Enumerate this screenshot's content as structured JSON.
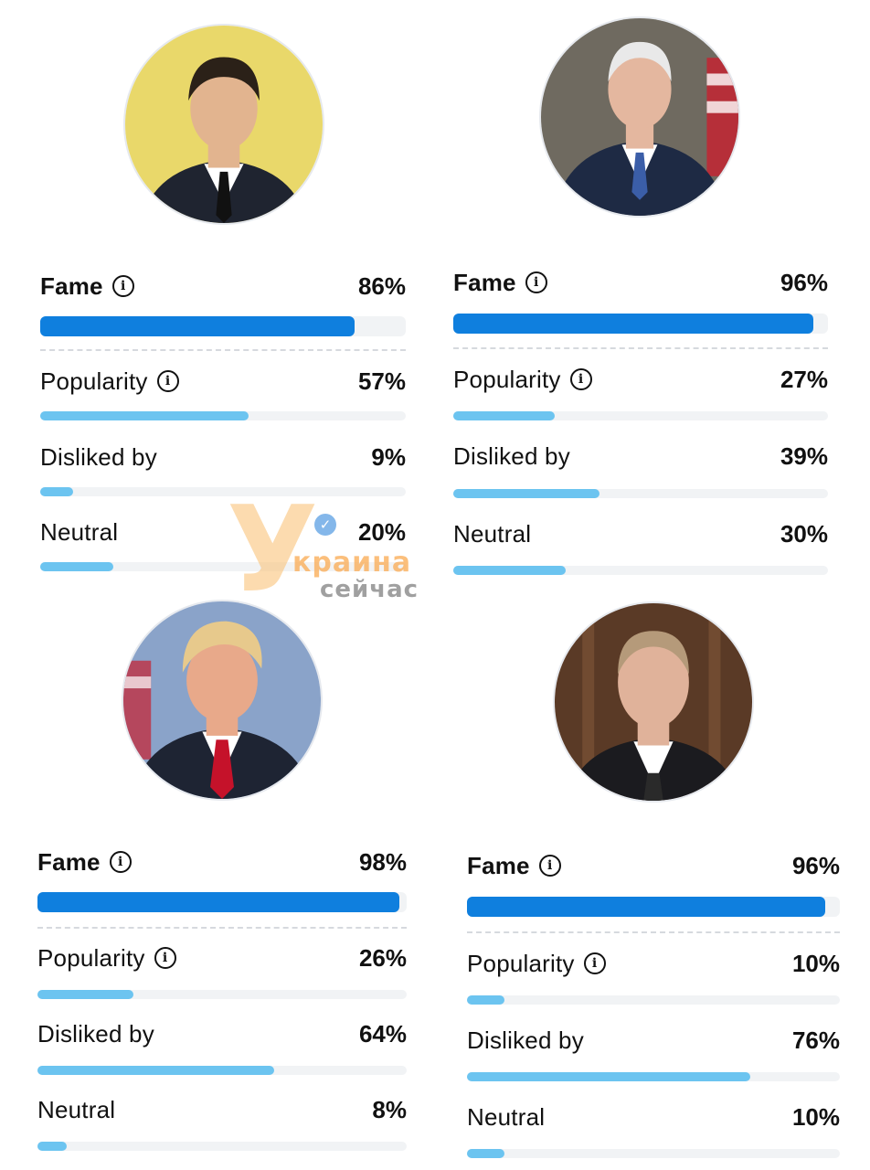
{
  "cards": [
    {
      "id": "zelensky",
      "photo_icon": "portrait-photo",
      "colors": {
        "bg": "#e9d86a",
        "suit": "#1f2430",
        "skin": "#e2b48f",
        "hair": "#2b2118",
        "tie": "#111111"
      },
      "metrics": {
        "fame": {
          "label": "Fame",
          "value": "86%",
          "level": 0.86
        },
        "popularity": {
          "label": "Popularity",
          "value": "57%",
          "level": 0.57
        },
        "disliked": {
          "label": "Disliked by",
          "value": "9%",
          "level": 0.09
        },
        "neutral": {
          "label": "Neutral",
          "value": "20%",
          "level": 0.2
        }
      }
    },
    {
      "id": "biden",
      "photo_icon": "portrait-photo",
      "colors": {
        "bg": "#6f6a60",
        "suit": "#1e2a44",
        "skin": "#e4b79f",
        "hair": "#e9e9e9",
        "tie": "#3b5ea8"
      },
      "metrics": {
        "fame": {
          "label": "Fame",
          "value": "96%",
          "level": 0.96
        },
        "popularity": {
          "label": "Popularity",
          "value": "27%",
          "level": 0.27
        },
        "disliked": {
          "label": "Disliked by",
          "value": "39%",
          "level": 0.39
        },
        "neutral": {
          "label": "Neutral",
          "value": "30%",
          "level": 0.3
        }
      }
    },
    {
      "id": "trump",
      "photo_icon": "portrait-photo",
      "colors": {
        "bg": "#8aa3c9",
        "suit": "#1e2433",
        "skin": "#e8a98a",
        "hair": "#e7c98c",
        "tie": "#c5122a"
      },
      "metrics": {
        "fame": {
          "label": "Fame",
          "value": "98%",
          "level": 0.98
        },
        "popularity": {
          "label": "Popularity",
          "value": "26%",
          "level": 0.26
        },
        "disliked": {
          "label": "Disliked by",
          "value": "64%",
          "level": 0.64
        },
        "neutral": {
          "label": "Neutral",
          "value": "8%",
          "level": 0.08
        }
      }
    },
    {
      "id": "putin",
      "photo_icon": "portrait-photo",
      "colors": {
        "bg": "#5a3a26",
        "suit": "#1b1b1f",
        "skin": "#e0b29a",
        "hair": "#b59a7a",
        "tie": "#2a2a2a"
      },
      "metrics": {
        "fame": {
          "label": "Fame",
          "value": "96%",
          "level": 0.96
        },
        "popularity": {
          "label": "Popularity",
          "value": "10%",
          "level": 0.1
        },
        "disliked": {
          "label": "Disliked by",
          "value": "76%",
          "level": 0.76
        },
        "neutral": {
          "label": "Neutral",
          "value": "10%",
          "level": 0.1
        }
      }
    }
  ],
  "info_icon": {
    "name": "info-icon",
    "glyph": "i"
  },
  "watermark": {
    "letter": "У",
    "line1": "краина",
    "line2": "сейчас",
    "badge_icon": "verified-check-icon"
  },
  "colors": {
    "fame_fill": "#0f7fde",
    "bar_fill": "#6cc4f0",
    "track": "#f1f3f5"
  }
}
